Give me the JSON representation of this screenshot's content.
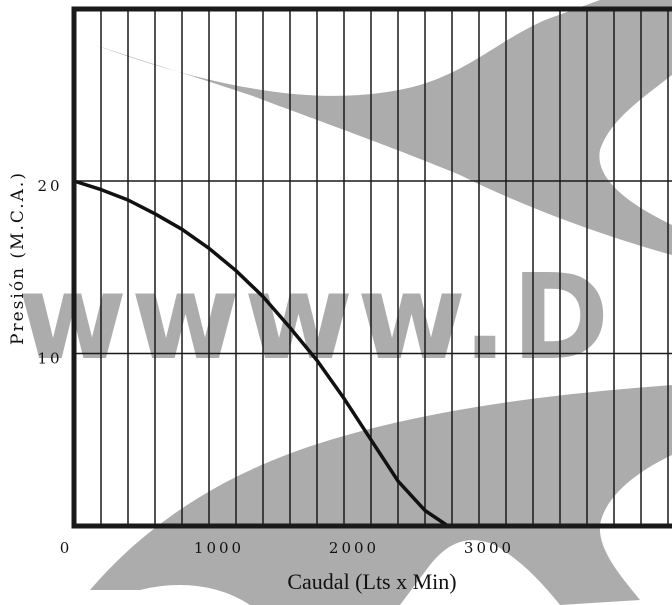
{
  "chart_data": {
    "type": "line",
    "xlabel": "Caudal (Lts x Min)",
    "ylabel": "Presión (M.C.A.)",
    "xlim": [
      0,
      4400
    ],
    "ylim": [
      0,
      30
    ],
    "x_ticks": [
      {
        "value": 0,
        "label": "0"
      },
      {
        "value": 1000,
        "label": "1000"
      },
      {
        "value": 2000,
        "label": "2000"
      },
      {
        "value": 3000,
        "label": "3000"
      }
    ],
    "y_ticks": [
      {
        "value": 10,
        "label": "10"
      },
      {
        "value": 20,
        "label": "20"
      }
    ],
    "x_grid_step": 200,
    "grid": true,
    "series": [
      {
        "x": [
          0,
          200,
          400,
          600,
          800,
          1000,
          1200,
          1400,
          1600,
          1800,
          2000,
          2200,
          2400,
          2600,
          2770
        ],
        "y": [
          20.0,
          19.5,
          18.9,
          18.1,
          17.2,
          16.1,
          14.8,
          13.3,
          11.5,
          9.6,
          7.4,
          5.0,
          2.6,
          0.9,
          0.0
        ]
      }
    ],
    "watermark": "wwww.D"
  },
  "colors": {
    "grid": "#1a1a1a",
    "curve": "#111111",
    "watermark": "#9e9e9e"
  }
}
